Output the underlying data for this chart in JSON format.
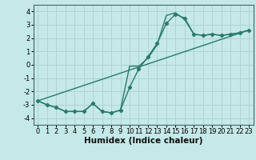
{
  "title": "",
  "xlabel": "Humidex (Indice chaleur)",
  "background_color": "#c5e8e8",
  "grid_color": "#afd4d4",
  "line_color": "#2a7a6a",
  "xlim": [
    -0.5,
    23.5
  ],
  "ylim": [
    -4.5,
    4.5
  ],
  "yticks": [
    -4,
    -3,
    -2,
    -1,
    0,
    1,
    2,
    3,
    4
  ],
  "xticks": [
    0,
    1,
    2,
    3,
    4,
    5,
    6,
    7,
    8,
    9,
    10,
    11,
    12,
    13,
    14,
    15,
    16,
    17,
    18,
    19,
    20,
    21,
    22,
    23
  ],
  "series1_x": [
    0,
    1,
    2,
    3,
    4,
    5,
    6,
    7,
    8,
    9,
    10,
    11,
    12,
    13,
    14,
    15,
    16,
    17,
    18,
    19,
    20,
    21,
    22,
    23
  ],
  "series1_y": [
    -2.7,
    -3.0,
    -3.2,
    -3.5,
    -3.5,
    -3.5,
    -2.9,
    -3.5,
    -3.6,
    -3.4,
    -1.7,
    -0.3,
    0.6,
    1.6,
    3.1,
    3.8,
    3.5,
    2.3,
    2.2,
    2.3,
    2.2,
    2.3,
    2.4,
    2.6
  ],
  "series2_x": [
    0,
    1,
    2,
    3,
    4,
    5,
    6,
    7,
    8,
    9,
    10,
    11,
    12,
    13,
    14,
    15,
    16,
    17,
    18,
    19,
    20,
    21,
    22,
    23
  ],
  "series2_y": [
    -2.7,
    -3.0,
    -3.2,
    -3.5,
    -3.5,
    -3.5,
    -2.9,
    -3.5,
    -3.6,
    -3.4,
    -0.1,
    -0.1,
    0.5,
    1.5,
    3.7,
    3.9,
    3.4,
    2.3,
    2.2,
    2.3,
    2.2,
    2.3,
    2.4,
    2.6
  ],
  "series3_x": [
    0,
    23
  ],
  "series3_y": [
    -2.7,
    2.6
  ],
  "marker_style": "D",
  "marker_size": 2.2,
  "line_width": 1.0,
  "tick_fontsize": 6.0,
  "xlabel_fontsize": 7.5
}
